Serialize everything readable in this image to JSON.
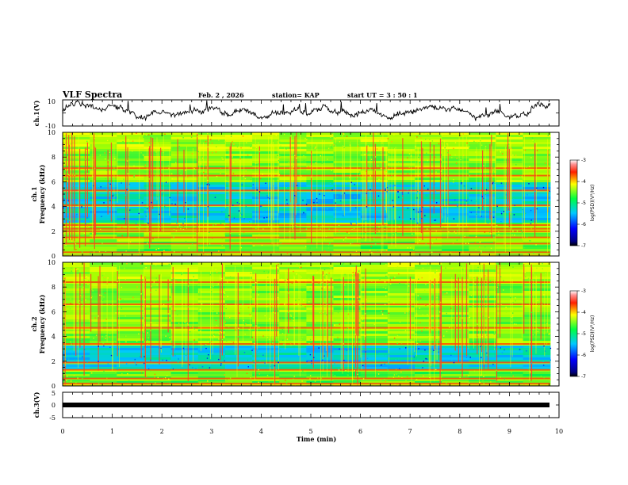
{
  "header": {
    "title": "VLF Spectra",
    "date": "Feb. 2  , 2026",
    "station": "station= KAP",
    "start_ut": "start  UT  =   3  : 50 : 1"
  },
  "chart_data": {
    "type": "heatmap",
    "x": {
      "label": "Time  (min)",
      "range": [
        0,
        10
      ],
      "ticks": [
        "0",
        "1",
        "2",
        "3",
        "4",
        "5",
        "6",
        "7",
        "8",
        "9",
        "10"
      ],
      "data_end_min": 9.82
    },
    "panels": [
      {
        "name": "ch1-waveform",
        "type": "line",
        "ylabel": "ch.1(V)",
        "ylim": [
          -10,
          10
        ],
        "tick_labels": [
          "10",
          "-10"
        ],
        "trace_color": "#000000"
      },
      {
        "name": "ch1-spectrogram",
        "type": "heatmap",
        "ylabel_top": "ch.1",
        "ylabel": "Frequency  (kHz)",
        "ylim": [
          0,
          10
        ],
        "tick_labels": [
          "0",
          "2",
          "4",
          "6",
          "8",
          "10"
        ],
        "bands_khz": [
          0.3,
          1.0,
          1.5,
          2.0,
          2.2,
          2.5,
          4.1,
          5.3,
          6.5,
          7.1
        ],
        "quiet_region_khz": [
          2.6,
          6.0
        ],
        "colorbar": {
          "label": "log(PSD)(V²/Hz)",
          "range": [
            -7,
            -3
          ],
          "tick_labels": [
            "-3",
            "-4",
            "-5",
            "-6",
            "-7"
          ]
        }
      },
      {
        "name": "ch2-spectrogram",
        "type": "heatmap",
        "ylabel_top": "ch.2",
        "ylabel": "Frequency  (kHz)",
        "ylim": [
          0,
          10
        ],
        "tick_labels": [
          "0",
          "2",
          "4",
          "6",
          "8",
          "10"
        ],
        "bands_khz": [
          0.2,
          0.6,
          1.3,
          1.9,
          3.4,
          4.7,
          6.6,
          8.4
        ],
        "quiet_region_khz": [
          1.4,
          3.3
        ],
        "colorbar": {
          "label": "log(PSD)(V²/Hz)",
          "range": [
            -7,
            -3
          ],
          "tick_labels": [
            "-3",
            "-4",
            "-5",
            "-6",
            "-7"
          ]
        }
      },
      {
        "name": "ch3-waveform",
        "type": "line",
        "ylabel": "ch.3(V)",
        "ylim": [
          -5,
          5
        ],
        "tick_labels": [
          "5",
          "0",
          "-5"
        ],
        "trace_value_v": 0,
        "trace_color": "#000000"
      }
    ]
  }
}
